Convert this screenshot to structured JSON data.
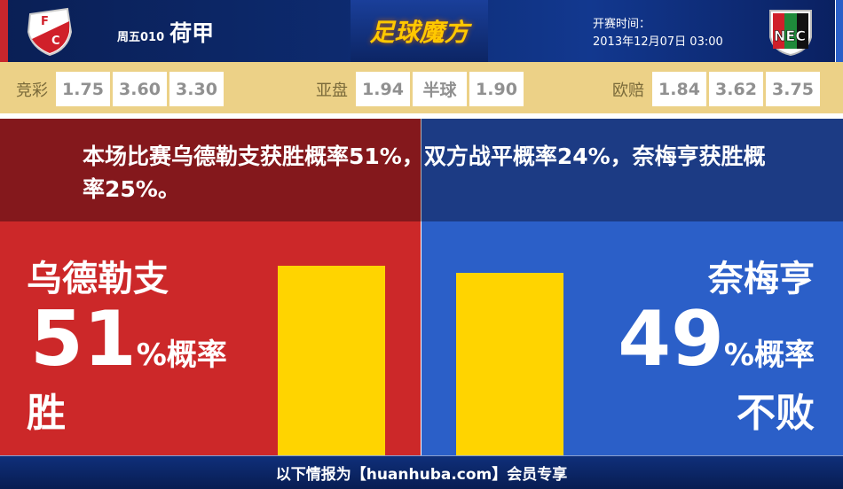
{
  "header": {
    "home_team_logo": "FC Utrecht",
    "away_team_logo": "NEC Nijmegen",
    "match_code": "周五010",
    "league": "荷甲",
    "brand": "足球魔方",
    "kickoff_label": "开赛时间：",
    "kickoff_time": "2013年12月07日 03:00"
  },
  "odds": {
    "jingcai": {
      "label": "竞彩",
      "values": [
        "1.75",
        "3.60",
        "3.30"
      ]
    },
    "yapan": {
      "label": "亚盘",
      "values": [
        "1.94",
        "半球",
        "1.90"
      ]
    },
    "oupei": {
      "label": "欧赔",
      "values": [
        "1.84",
        "3.62",
        "3.75"
      ]
    }
  },
  "summary": "本场比赛乌德勒支获胜概率51%，双方战平概率24%，奈梅亨获胜概率25%。",
  "home": {
    "name": "乌德勒支",
    "percent": "51",
    "unit": "%概率",
    "result": "胜",
    "bar_value": 51
  },
  "away": {
    "name": "奈梅亨",
    "percent": "49",
    "unit": "%概率",
    "result": "不败",
    "bar_value": 49
  },
  "footer": "以下情报为【huanhuba.com】会员专享",
  "colors": {
    "home": "#cc2829",
    "away": "#2b5fc8",
    "bar": "#ffd400",
    "odds_bg": "#ecd187"
  }
}
